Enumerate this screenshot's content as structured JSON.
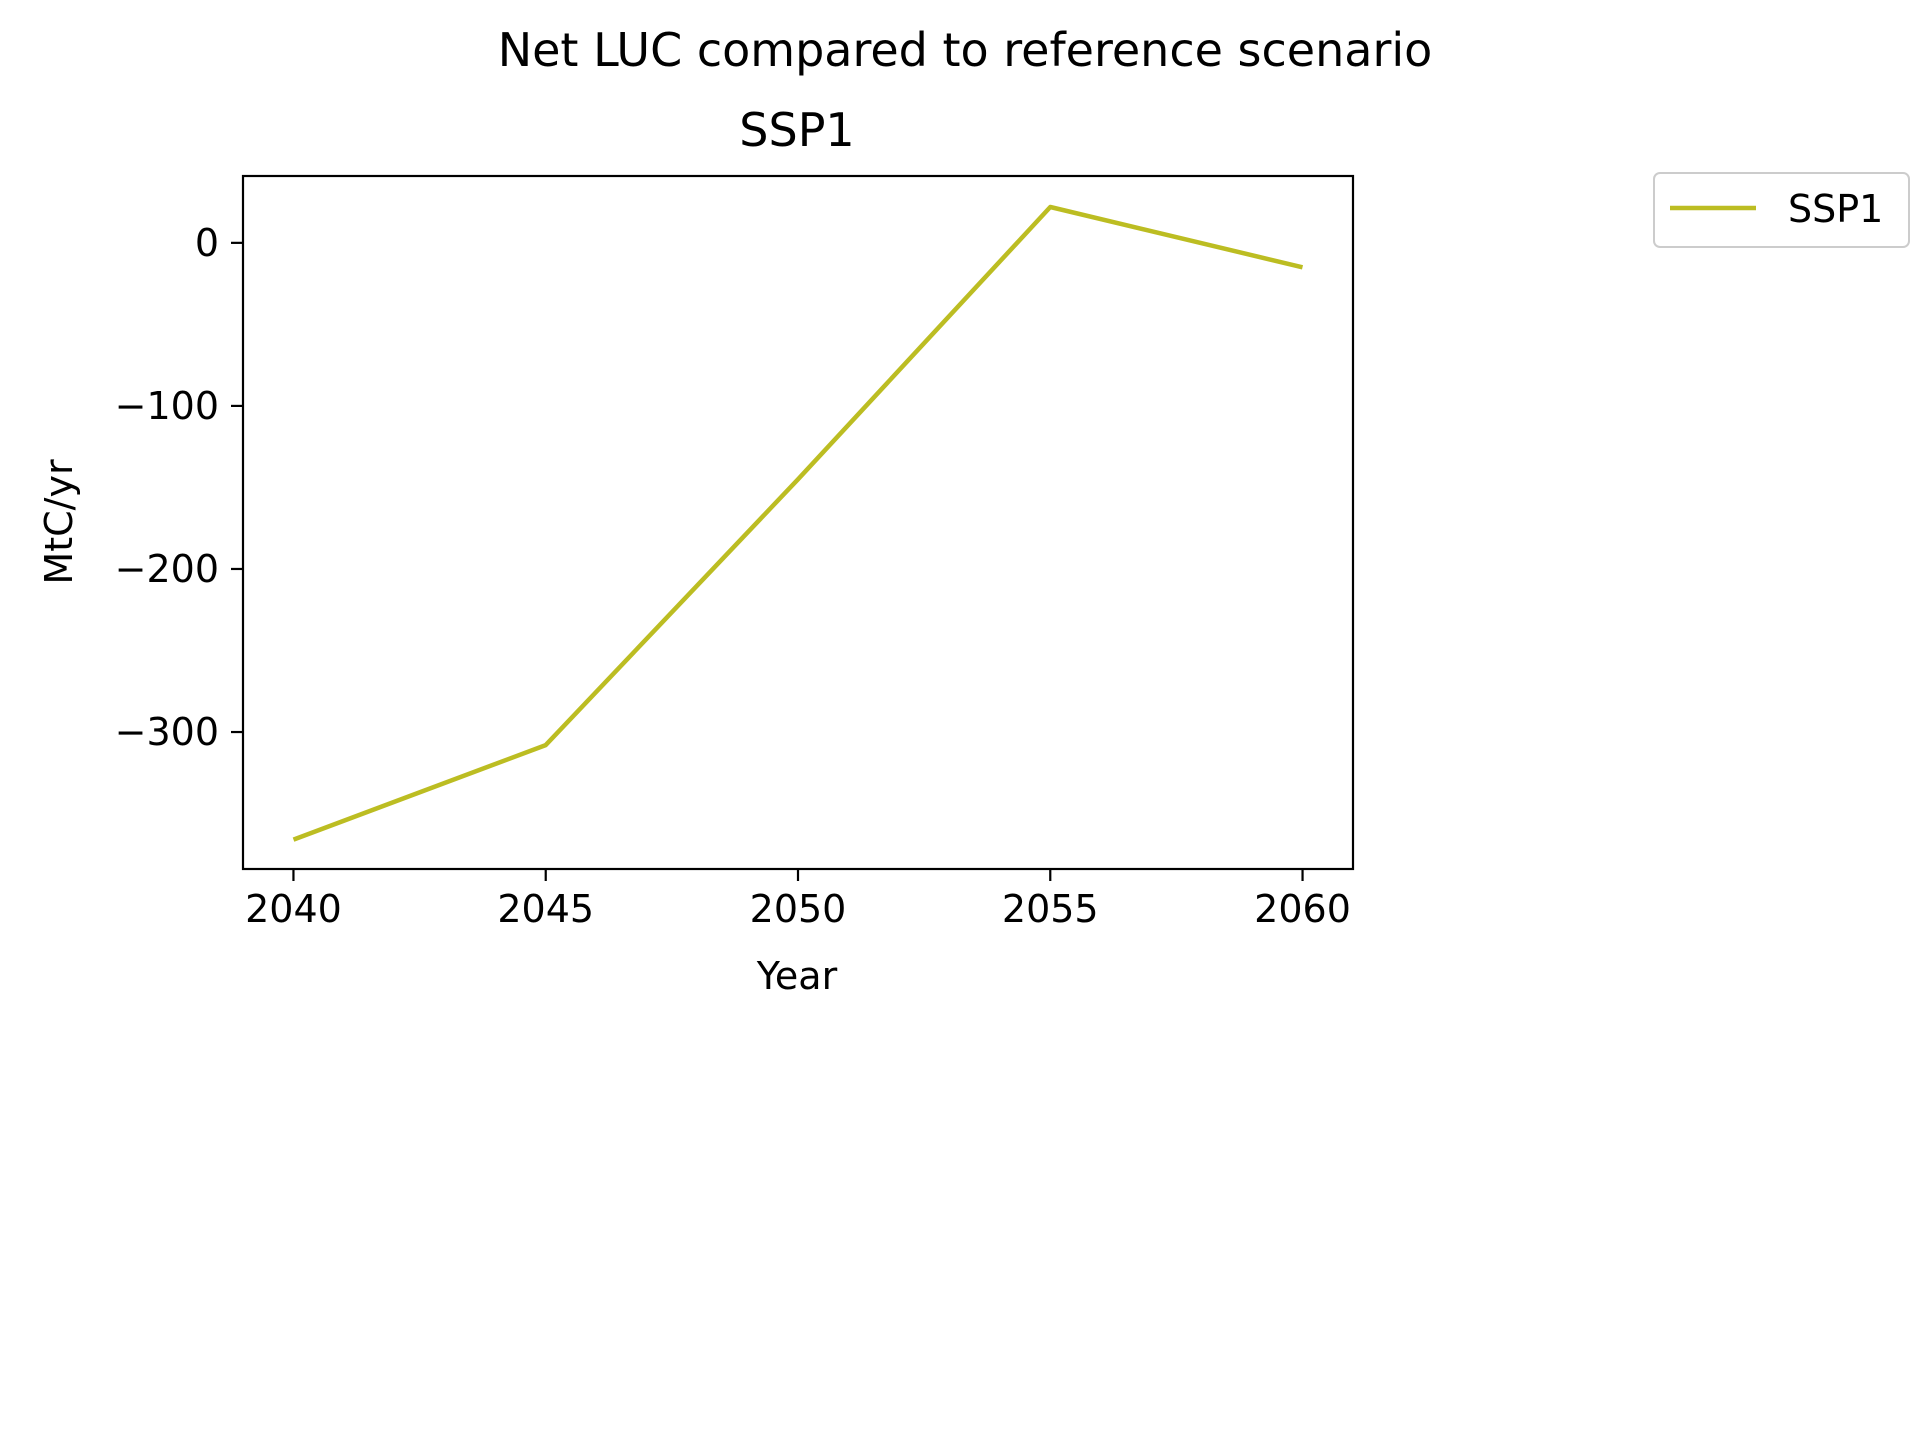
{
  "figure": {
    "suptitle": "Net LUC compared to reference scenario"
  },
  "chart_data": {
    "type": "line",
    "title": "SSP1",
    "xlabel": "Year",
    "ylabel": "MtC/yr",
    "x": [
      2040,
      2045,
      2050,
      2055,
      2060
    ],
    "series": [
      {
        "name": "SSP1",
        "color": "#bcbd22",
        "values": [
          -366,
          -308,
          -145,
          22,
          -15
        ]
      }
    ],
    "xlim": [
      2039,
      2061
    ],
    "ylim": [
      -384,
      41
    ],
    "xticks": [
      2040,
      2045,
      2050,
      2055,
      2060
    ],
    "xtick_labels": [
      "2040",
      "2045",
      "2050",
      "2055",
      "2060"
    ],
    "yticks": [
      0,
      -100,
      -200,
      -300
    ],
    "ytick_labels": [
      "0",
      "−100",
      "−200",
      "−300"
    ],
    "grid": false,
    "legend": {
      "placement": "outside-top-right",
      "entries": [
        "SSP1"
      ]
    }
  }
}
